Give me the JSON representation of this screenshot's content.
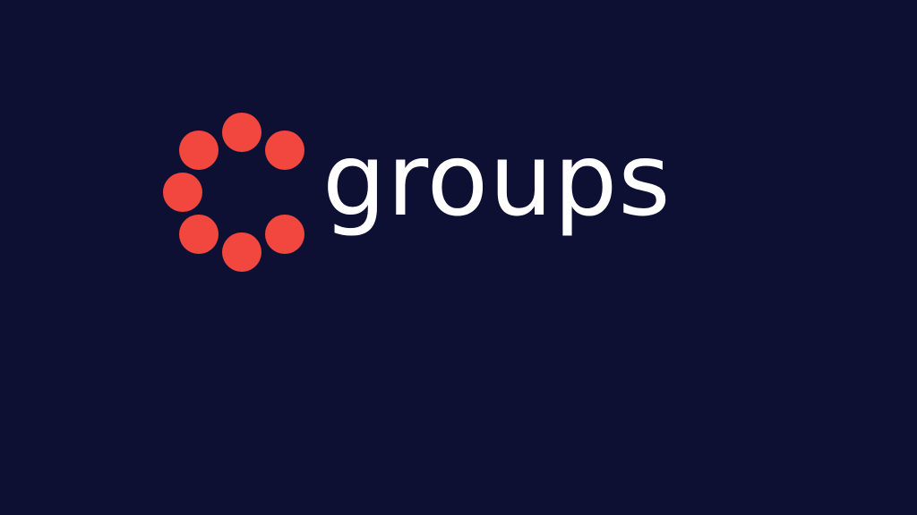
{
  "screen": {
    "background_color": "#0E1033"
  },
  "logo": {
    "wordmark": "groups",
    "wordmark_color": "#FFFFFF",
    "mark": {
      "icon": "circle-of-dots-icon",
      "dot_count": 7,
      "dot_color": "#F2473F"
    }
  }
}
